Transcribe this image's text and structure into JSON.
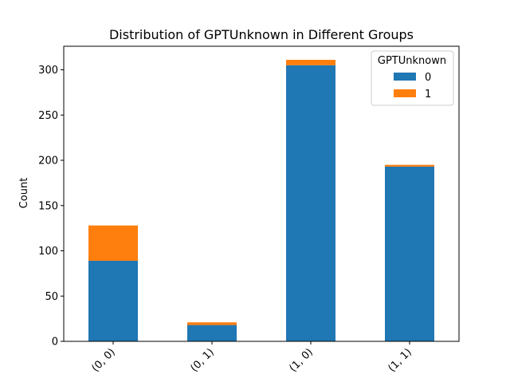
{
  "chart_data": {
    "type": "bar",
    "stacked": true,
    "title": "Distribution of GPTUnknown in Different Groups",
    "xlabel": "",
    "ylabel": "Count",
    "categories": [
      "(0, 0)",
      "(0, 1)",
      "(1, 0)",
      "(1, 1)"
    ],
    "series": [
      {
        "name": "0",
        "values": [
          89,
          18,
          305,
          193
        ]
      },
      {
        "name": "1",
        "values": [
          39,
          3,
          6,
          2
        ]
      }
    ],
    "ylim": [
      0,
      326
    ],
    "yticks": [
      0,
      50,
      100,
      150,
      200,
      250,
      300
    ],
    "grid": false,
    "legend": {
      "title": "GPTUnknown",
      "position": "upper-right"
    },
    "colors": {
      "0": "#1f77b4",
      "1": "#ff7f0e"
    }
  }
}
